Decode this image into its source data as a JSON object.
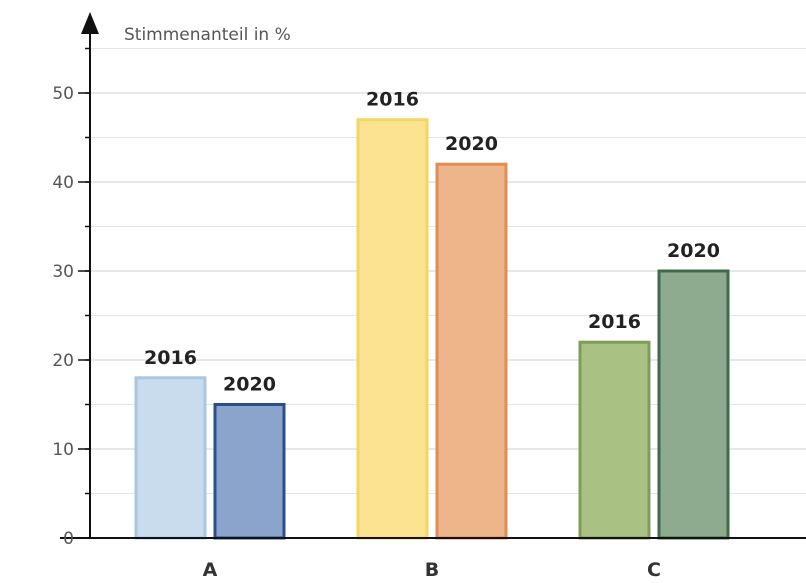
{
  "chart_data": {
    "type": "bar",
    "ylabel": "Stimmenanteil in %",
    "xlabel": "",
    "categories": [
      "A",
      "B",
      "C"
    ],
    "ylim": [
      0,
      55
    ],
    "yticks": [
      0,
      10,
      20,
      30,
      40,
      50
    ],
    "grid": true,
    "bars": [
      {
        "category": "A",
        "label": "2016",
        "value": 18,
        "fill": "#c9dcee",
        "stroke": "#a9c6e2"
      },
      {
        "category": "A",
        "label": "2020",
        "value": 15,
        "fill": "#8aa4cc",
        "stroke": "#2b4f8a"
      },
      {
        "category": "B",
        "label": "2016",
        "value": 47,
        "fill": "#fbe391",
        "stroke": "#f3d466"
      },
      {
        "category": "B",
        "label": "2020",
        "value": 42,
        "fill": "#efb58a",
        "stroke": "#e08c55"
      },
      {
        "category": "C",
        "label": "2016",
        "value": 22,
        "fill": "#a9c183",
        "stroke": "#7f9d5a"
      },
      {
        "category": "C",
        "label": "2020",
        "value": 30,
        "fill": "#8eab90",
        "stroke": "#3f6b4a"
      }
    ]
  }
}
